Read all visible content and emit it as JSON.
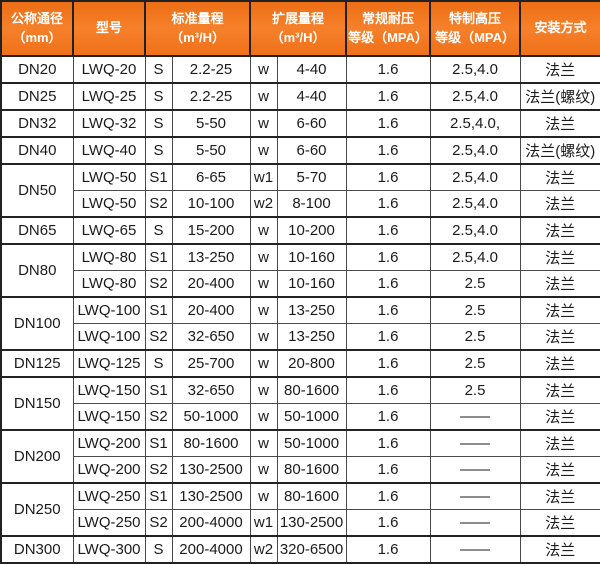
{
  "colors": {
    "header_bg": "#f1741f",
    "header_text": "#ffffff",
    "body_text": "#1b1b1b",
    "border_dark": "#222222",
    "border_light": "#9a9a9a"
  },
  "table": {
    "header": {
      "dn": {
        "line1": "公称通径",
        "line2": "（mm）"
      },
      "model": {
        "line1": "型号",
        "line2": ""
      },
      "std": {
        "line1": "标准量程",
        "line2": "（m³/H）"
      },
      "ext": {
        "line1": "扩展量程",
        "line2": "（m³/H）"
      },
      "reg": {
        "line1": "常规耐压",
        "line2": "等级（MPA）"
      },
      "high": {
        "line1": "特制高压",
        "line2": "等级（MPA）"
      },
      "install": {
        "line1": "安装方式",
        "line2": ""
      }
    },
    "groups": [
      {
        "dn": "DN20",
        "rows": [
          {
            "model": "LWQ-20",
            "s": "S",
            "std": "2.2-25",
            "w": "w",
            "ext": "4-40",
            "reg": "1.6",
            "high": "2.5,4.0",
            "install": "法兰"
          }
        ]
      },
      {
        "dn": "DN25",
        "rows": [
          {
            "model": "LWQ-25",
            "s": "S",
            "std": "2.2-25",
            "w": "w",
            "ext": "4-40",
            "reg": "1.6",
            "high": "2.5,4.0",
            "install": "法兰(螺纹)"
          }
        ]
      },
      {
        "dn": "DN32",
        "rows": [
          {
            "model": "LWQ-32",
            "s": "S",
            "std": "5-50",
            "w": "w",
            "ext": "6-60",
            "reg": "1.6",
            "high": "2.5,4.0,",
            "install": "法兰"
          }
        ]
      },
      {
        "dn": "DN40",
        "rows": [
          {
            "model": "LWQ-40",
            "s": "S",
            "std": "5-50",
            "w": "w",
            "ext": "6-60",
            "reg": "1.6",
            "high": "2.5,4.0",
            "install": "法兰(螺纹)"
          }
        ]
      },
      {
        "dn": "DN50",
        "rows": [
          {
            "model": "LWQ-50",
            "s": "S1",
            "std": "6-65",
            "w": "w1",
            "ext": "5-70",
            "reg": "1.6",
            "high": "2.5,4.0",
            "install": "法兰"
          },
          {
            "model": "LWQ-50",
            "s": "S2",
            "std": "10-100",
            "w": "w2",
            "ext": "8-100",
            "reg": "1.6",
            "high": "2.5,4.0",
            "install": "法兰"
          }
        ]
      },
      {
        "dn": "DN65",
        "rows": [
          {
            "model": "LWQ-65",
            "s": "S",
            "std": "15-200",
            "w": "w",
            "ext": "10-200",
            "reg": "1.6",
            "high": "2.5,4.0",
            "install": "法兰"
          }
        ]
      },
      {
        "dn": "DN80",
        "rows": [
          {
            "model": "LWQ-80",
            "s": "S1",
            "std": "13-250",
            "w": "w",
            "ext": "10-160",
            "reg": "1.6",
            "high": "2.5,4.0",
            "install": "法兰"
          },
          {
            "model": "LWQ-80",
            "s": "S2",
            "std": "20-400",
            "w": "w",
            "ext": "10-160",
            "reg": "1.6",
            "high": "2.5",
            "install": "法兰"
          }
        ]
      },
      {
        "dn": "DN100",
        "rows": [
          {
            "model": "LWQ-100",
            "s": "S1",
            "std": "20-400",
            "w": "w",
            "ext": "13-250",
            "reg": "1.6",
            "high": "2.5",
            "install": "法兰"
          },
          {
            "model": "LWQ-100",
            "s": "S2",
            "std": "32-650",
            "w": "w",
            "ext": "13-250",
            "reg": "1.6",
            "high": "2.5",
            "install": "法兰"
          }
        ]
      },
      {
        "dn": "DN125",
        "rows": [
          {
            "model": "LWQ-125",
            "s": "S",
            "std": "25-700",
            "w": "w",
            "ext": "20-800",
            "reg": "1.6",
            "high": "2.5",
            "install": "法兰"
          }
        ]
      },
      {
        "dn": "DN150",
        "rows": [
          {
            "model": "LWQ-150",
            "s": "S1",
            "std": "32-650",
            "w": "w",
            "ext": "80-1600",
            "reg": "1.6",
            "high": "2.5",
            "install": "法兰"
          },
          {
            "model": "LWQ-150",
            "s": "S2",
            "std": "50-1000",
            "w": "w",
            "ext": "50-1000",
            "reg": "1.6",
            "high": "——",
            "install": "法兰"
          }
        ]
      },
      {
        "dn": "DN200",
        "rows": [
          {
            "model": "LWQ-200",
            "s": "S1",
            "std": "80-1600",
            "w": "w",
            "ext": "50-1000",
            "reg": "1.6",
            "high": "——",
            "install": "法兰"
          },
          {
            "model": "LWQ-200",
            "s": "S2",
            "std": "130-2500",
            "w": "w",
            "ext": "80-1600",
            "reg": "1.6",
            "high": "——",
            "install": "法兰"
          }
        ]
      },
      {
        "dn": "DN250",
        "rows": [
          {
            "model": "LWQ-250",
            "s": "S1",
            "std": "130-2500",
            "w": "w",
            "ext": "80-1600",
            "reg": "1.6",
            "high": "——",
            "install": "法兰"
          },
          {
            "model": "LWQ-250",
            "s": "S2",
            "std": "200-4000",
            "w": "w1",
            "ext": "130-2500",
            "reg": "1.6",
            "high": "——",
            "install": "法兰"
          }
        ]
      },
      {
        "dn": "DN300",
        "rows": [
          {
            "model": "LWQ-300",
            "s": "S",
            "std": "200-4000",
            "w": "w2",
            "ext": "320-6500",
            "reg": "1.6",
            "high": "——",
            "install": "法兰"
          }
        ]
      }
    ]
  }
}
